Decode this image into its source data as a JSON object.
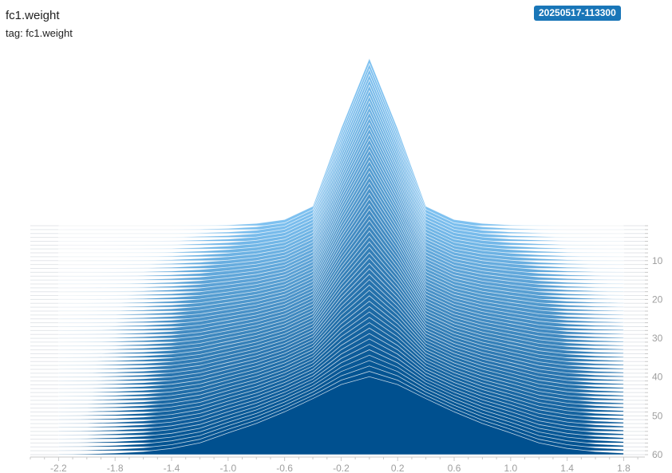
{
  "header": {
    "title": "fc1.weight",
    "subtitle": "tag: fc1.weight",
    "run_badge": "20250517-113300"
  },
  "chart_data": {
    "type": "histogram-ridgeline",
    "title": "fc1.weight",
    "subtitle": "tag: fc1.weight",
    "x_ticks": [
      -2.2,
      -1.8,
      -1.4,
      -1.0,
      -0.6,
      -0.2,
      0.2,
      0.6,
      1.0,
      1.4,
      1.8
    ],
    "xlim": [
      -2.4,
      1.95
    ],
    "step_ticks": [
      10,
      20,
      30,
      40,
      50,
      60
    ],
    "step_range": [
      1,
      60
    ],
    "num_steps": 60,
    "bins": [
      -2.2,
      -2.0,
      -1.8,
      -1.6,
      -1.4,
      -1.2,
      -1.0,
      -0.8,
      -0.6,
      -0.4,
      -0.2,
      0.0,
      0.2,
      0.4,
      0.6,
      0.8,
      1.0,
      1.2,
      1.4,
      1.6,
      1.8
    ],
    "counts_first_step": [
      0,
      0,
      0,
      0,
      0,
      0.5,
      1,
      3,
      8,
      25,
      125,
      215,
      125,
      25,
      8,
      3,
      1,
      0.5,
      0,
      0,
      0
    ],
    "counts_last_step": [
      0.5,
      1,
      2,
      4,
      8,
      15,
      28,
      40,
      55,
      72,
      90,
      100,
      90,
      72,
      55,
      40,
      28,
      15,
      8,
      4,
      2
    ],
    "colors": {
      "front": "#00508f",
      "back": "#7ec1f0",
      "outline": "#ffffff",
      "axis_text": "#9e9e9e",
      "badge": "#1976b8"
    }
  }
}
